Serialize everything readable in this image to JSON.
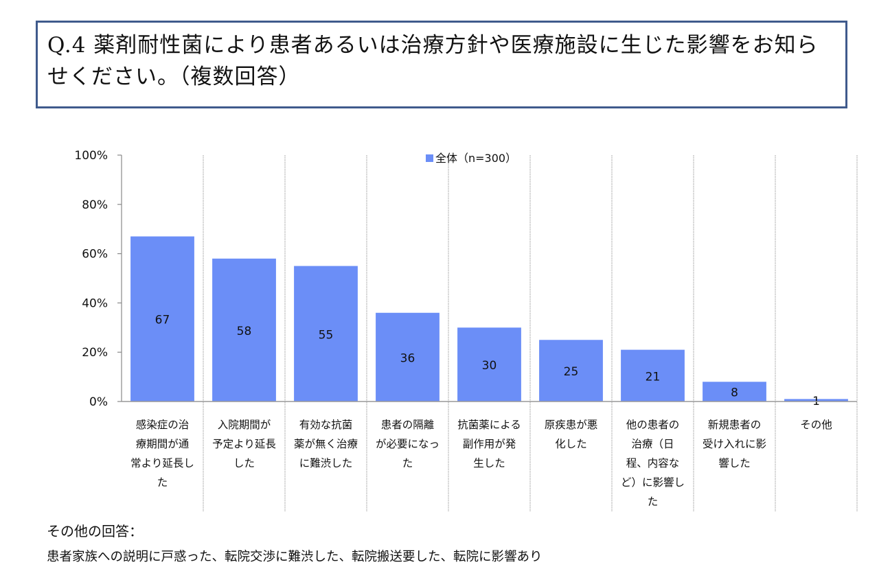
{
  "header": {
    "title": "Q.4 薬剤耐性菌により患者あるいは治療方針や医療施設に生じた影響をお知らせください。（複数回答）"
  },
  "chart_data": {
    "type": "bar",
    "title": "",
    "xlabel": "",
    "ylabel": "",
    "ylim": [
      0,
      100
    ],
    "y_ticks": [
      "0%",
      "20%",
      "40%",
      "60%",
      "80%",
      "100%"
    ],
    "y_tick_values": [
      0,
      20,
      40,
      60,
      80,
      100
    ],
    "grid": "vertical category separators (dotted)",
    "legend_position": "top-center",
    "bar_color": "#6b8ef7",
    "categories": [
      "感染症の治療期間が通常より延長した",
      "入院期間が予定より延長した",
      "有効な抗菌薬が無く治療に難渋した",
      "患者の隔離が必要になった",
      "抗菌薬による副作用が発生した",
      "原疾患が悪化した",
      "他の患者の治療（日程、内容など）に影響した",
      "新規患者の受け入れに影響した",
      "その他"
    ],
    "category_lines": [
      [
        "感染症の治",
        "療期間が通",
        "常より延長し",
        "た"
      ],
      [
        "入院期間が",
        "予定より延長",
        "した"
      ],
      [
        "有効な抗菌",
        "薬が無く治療",
        "に難渋した"
      ],
      [
        "患者の隔離",
        "が必要になっ",
        "た"
      ],
      [
        "抗菌薬による",
        "副作用が発",
        "生した"
      ],
      [
        "原疾患が悪",
        "化した"
      ],
      [
        "他の患者の",
        "治療（日",
        "程、内容な",
        "ど）に影響し",
        "た"
      ],
      [
        "新規患者の",
        "受け入れに影",
        "響した"
      ],
      [
        "その他"
      ]
    ],
    "series": [
      {
        "name": "全体（n=300）",
        "values": [
          67,
          58,
          55,
          36,
          30,
          25,
          21,
          8,
          1
        ],
        "data_labels": [
          "67",
          "58",
          "55",
          "36",
          "30",
          "25",
          "21",
          "8",
          "1"
        ]
      }
    ]
  },
  "notes": {
    "title": "その他の回答：",
    "body": "患者家族への説明に戸惑った、転院交渉に難渋した、転院搬送要した、転院に影響あり"
  }
}
